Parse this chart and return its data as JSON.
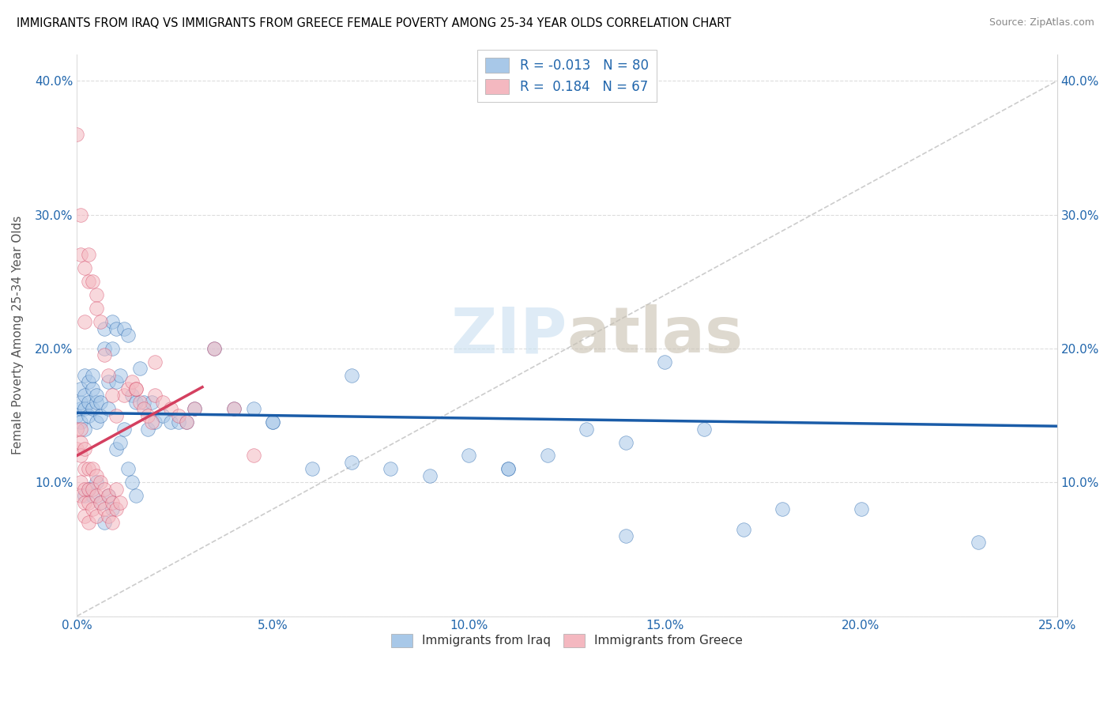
{
  "title": "IMMIGRANTS FROM IRAQ VS IMMIGRANTS FROM GREECE FEMALE POVERTY AMONG 25-34 YEAR OLDS CORRELATION CHART",
  "source": "Source: ZipAtlas.com",
  "ylabel": "Female Poverty Among 25-34 Year Olds",
  "xlim": [
    0.0,
    0.25
  ],
  "ylim": [
    0.0,
    0.42
  ],
  "iraq_color": "#a8c8e8",
  "greece_color": "#f4b8c0",
  "iraq_line_color": "#1a5ca8",
  "greece_line_color": "#d44060",
  "diag_color": "#cccccc",
  "iraq_R": -0.013,
  "iraq_N": 80,
  "greece_R": 0.184,
  "greece_N": 67,
  "watermark": "ZIPatlas",
  "legend_iraq": "Immigrants from Iraq",
  "legend_greece": "Immigrants from Greece",
  "iraq_x": [
    0.0,
    0.001,
    0.001,
    0.001,
    0.001,
    0.002,
    0.002,
    0.002,
    0.002,
    0.003,
    0.003,
    0.003,
    0.004,
    0.004,
    0.004,
    0.005,
    0.005,
    0.005,
    0.006,
    0.006,
    0.007,
    0.007,
    0.008,
    0.008,
    0.009,
    0.009,
    0.01,
    0.01,
    0.011,
    0.012,
    0.013,
    0.014,
    0.015,
    0.016,
    0.017,
    0.018,
    0.019,
    0.02,
    0.022,
    0.024,
    0.026,
    0.028,
    0.03,
    0.035,
    0.04,
    0.045,
    0.05,
    0.06,
    0.07,
    0.08,
    0.09,
    0.1,
    0.11,
    0.12,
    0.13,
    0.14,
    0.15,
    0.16,
    0.18,
    0.2,
    0.002,
    0.003,
    0.004,
    0.005,
    0.006,
    0.007,
    0.008,
    0.009,
    0.01,
    0.011,
    0.012,
    0.013,
    0.014,
    0.015,
    0.05,
    0.07,
    0.11,
    0.14,
    0.17,
    0.23
  ],
  "iraq_y": [
    0.15,
    0.155,
    0.16,
    0.17,
    0.145,
    0.165,
    0.18,
    0.155,
    0.14,
    0.175,
    0.16,
    0.15,
    0.155,
    0.17,
    0.18,
    0.16,
    0.145,
    0.165,
    0.15,
    0.16,
    0.215,
    0.2,
    0.155,
    0.175,
    0.22,
    0.2,
    0.215,
    0.175,
    0.18,
    0.215,
    0.21,
    0.165,
    0.16,
    0.185,
    0.16,
    0.14,
    0.16,
    0.145,
    0.15,
    0.145,
    0.145,
    0.145,
    0.155,
    0.2,
    0.155,
    0.155,
    0.145,
    0.11,
    0.115,
    0.11,
    0.105,
    0.12,
    0.11,
    0.12,
    0.14,
    0.13,
    0.19,
    0.14,
    0.08,
    0.08,
    0.09,
    0.095,
    0.09,
    0.1,
    0.085,
    0.07,
    0.09,
    0.08,
    0.125,
    0.13,
    0.14,
    0.11,
    0.1,
    0.09,
    0.145,
    0.18,
    0.11,
    0.06,
    0.065,
    0.055
  ],
  "greece_x": [
    0.0,
    0.0,
    0.001,
    0.001,
    0.001,
    0.001,
    0.001,
    0.002,
    0.002,
    0.002,
    0.002,
    0.002,
    0.003,
    0.003,
    0.003,
    0.003,
    0.004,
    0.004,
    0.004,
    0.005,
    0.005,
    0.005,
    0.006,
    0.006,
    0.007,
    0.007,
    0.008,
    0.008,
    0.009,
    0.009,
    0.01,
    0.01,
    0.011,
    0.012,
    0.013,
    0.014,
    0.015,
    0.016,
    0.017,
    0.018,
    0.019,
    0.02,
    0.022,
    0.024,
    0.026,
    0.028,
    0.03,
    0.035,
    0.04,
    0.045,
    0.0,
    0.001,
    0.001,
    0.002,
    0.002,
    0.003,
    0.003,
    0.004,
    0.005,
    0.005,
    0.006,
    0.007,
    0.008,
    0.009,
    0.01,
    0.015,
    0.02
  ],
  "greece_y": [
    0.14,
    0.125,
    0.14,
    0.13,
    0.12,
    0.1,
    0.09,
    0.125,
    0.11,
    0.095,
    0.085,
    0.075,
    0.11,
    0.095,
    0.085,
    0.07,
    0.11,
    0.095,
    0.08,
    0.105,
    0.09,
    0.075,
    0.1,
    0.085,
    0.095,
    0.08,
    0.09,
    0.075,
    0.085,
    0.07,
    0.095,
    0.08,
    0.085,
    0.165,
    0.17,
    0.175,
    0.17,
    0.16,
    0.155,
    0.15,
    0.145,
    0.165,
    0.16,
    0.155,
    0.15,
    0.145,
    0.155,
    0.2,
    0.155,
    0.12,
    0.36,
    0.3,
    0.27,
    0.26,
    0.22,
    0.25,
    0.27,
    0.25,
    0.24,
    0.23,
    0.22,
    0.195,
    0.18,
    0.165,
    0.15,
    0.17,
    0.19
  ]
}
